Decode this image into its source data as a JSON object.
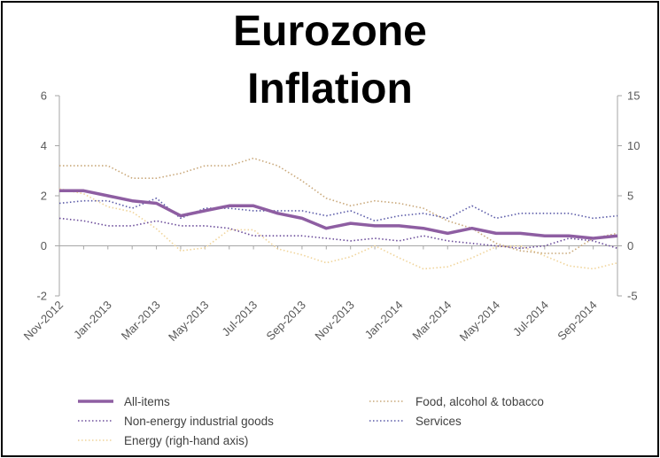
{
  "title_lines": [
    "Eurozone",
    "Inflation"
  ],
  "colors": {
    "all_items": "#8e5ea2",
    "food": "#c9a87a",
    "non_energy": "#6b4c9a",
    "services": "#5b5ba8",
    "energy": "#f0d49a"
  },
  "chart_data": {
    "type": "line",
    "title": "Eurozone Inflation",
    "x": [
      "Nov-2012",
      "Dec-2012",
      "Jan-2013",
      "Feb-2013",
      "Mar-2013",
      "Apr-2013",
      "May-2013",
      "Jun-2013",
      "Jul-2013",
      "Aug-2013",
      "Sep-2013",
      "Oct-2013",
      "Nov-2013",
      "Dec-2013",
      "Jan-2014",
      "Feb-2014",
      "Mar-2014",
      "Apr-2014",
      "May-2014",
      "Jun-2014",
      "Jul-2014",
      "Aug-2014",
      "Sep-2014",
      "Oct-2014"
    ],
    "x_tick_labels": [
      "Nov-2012",
      "Jan-2013",
      "Mar-2013",
      "May-2013",
      "Jul-2013",
      "Sep-2013",
      "Nov-2013",
      "Jan-2014",
      "Mar-2014",
      "May-2014",
      "Jul-2014",
      "Sep-2014"
    ],
    "ylim_left": [
      -2,
      6
    ],
    "yticks_left": [
      -2,
      0,
      2,
      4,
      6
    ],
    "ylim_right": [
      -5,
      15
    ],
    "yticks_right": [
      -5,
      0,
      5,
      10,
      15
    ],
    "grid": false,
    "legend_position": "bottom",
    "series": [
      {
        "key": "all_items",
        "name": "All-items",
        "axis": "left",
        "style": "solid",
        "values": [
          2.2,
          2.2,
          2.0,
          1.8,
          1.7,
          1.2,
          1.4,
          1.6,
          1.6,
          1.3,
          1.1,
          0.7,
          0.9,
          0.8,
          0.8,
          0.7,
          0.5,
          0.7,
          0.5,
          0.5,
          0.4,
          0.4,
          0.3,
          0.4
        ]
      },
      {
        "key": "food",
        "name": "Food, alcohol & tobacco",
        "axis": "left",
        "style": "dotted",
        "values": [
          3.2,
          3.2,
          3.2,
          2.7,
          2.7,
          2.9,
          3.2,
          3.2,
          3.5,
          3.2,
          2.6,
          1.9,
          1.6,
          1.8,
          1.7,
          1.5,
          1.0,
          0.7,
          0.1,
          -0.2,
          -0.3,
          -0.3,
          0.3,
          0.5
        ]
      },
      {
        "key": "non_energy",
        "name": "Non-energy industrial goods",
        "axis": "left",
        "style": "dotted",
        "values": [
          1.1,
          1.0,
          0.8,
          0.8,
          1.0,
          0.8,
          0.8,
          0.7,
          0.4,
          0.4,
          0.4,
          0.3,
          0.2,
          0.3,
          0.2,
          0.4,
          0.2,
          0.1,
          0.0,
          -0.1,
          0.0,
          0.3,
          0.2,
          -0.1
        ]
      },
      {
        "key": "services",
        "name": "Services",
        "axis": "left",
        "style": "dotted",
        "values": [
          1.7,
          1.8,
          1.8,
          1.5,
          1.9,
          1.1,
          1.5,
          1.5,
          1.4,
          1.4,
          1.4,
          1.2,
          1.4,
          1.0,
          1.2,
          1.3,
          1.1,
          1.6,
          1.1,
          1.3,
          1.3,
          1.3,
          1.1,
          1.2
        ]
      },
      {
        "key": "energy",
        "name": "Energy (righ-hand axis)",
        "axis": "right",
        "style": "dotted",
        "values": [
          5.7,
          5.2,
          3.9,
          3.4,
          1.7,
          -0.5,
          -0.2,
          1.6,
          1.6,
          -0.3,
          -0.9,
          -1.7,
          -1.1,
          0.0,
          -1.2,
          -2.3,
          -2.1,
          -1.2,
          -0.1,
          0.0,
          -1.0,
          -2.0,
          -2.3,
          -1.7
        ]
      }
    ]
  }
}
